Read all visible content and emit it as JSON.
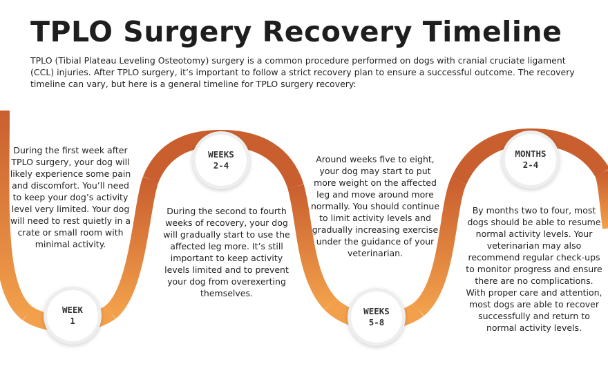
{
  "header": {
    "title": "TPLO Surgery Recovery Timeline",
    "intro": "TPLO (Tibial Plateau Leveling Osteotomy) surgery is a common procedure performed on dogs with cranial cruciate ligament (CCL) injuries. After TPLO surgery, it’s important to follow a strict recovery plan to ensure a successful outcome. The recovery timeline can vary, but here is a general timeline for TPLO surgery recovery:"
  },
  "colors": {
    "orange_dark": "#c95f2f",
    "orange_light": "#f2a04b"
  },
  "stages": [
    {
      "badge_line1": "WEEK",
      "badge_line2": "1",
      "text": "During the first week after TPLO surgery, your dog will likely experience some pain and discomfort. You’ll need to keep your dog’s activity level very limited. Your dog will need to rest quietly in a crate or small room with minimal activity."
    },
    {
      "badge_line1": "WEEKS",
      "badge_line2": "2-4",
      "text": "During the second to fourth weeks of recovery, your dog will gradually start to use the affected leg more. It’s still important to keep activity levels limited and to prevent your dog from overexerting themselves."
    },
    {
      "badge_line1": "WEEKS",
      "badge_line2": "5-8",
      "text": "Around weeks five to eight, your dog may start to put more weight on the affected leg and move around more normally. You should continue to limit activity levels and gradually increasing exercise under the guidance of your veterinarian."
    },
    {
      "badge_line1": "MONTHS",
      "badge_line2": "2-4",
      "text": "By months two to four, most dogs should be able to resume normal activity levels. Your veterinarian may also recommend regular check-ups to monitor progress and ensure there are no complications. With proper care and attention, most dogs are able to recover successfully and return to normal activity levels."
    }
  ]
}
